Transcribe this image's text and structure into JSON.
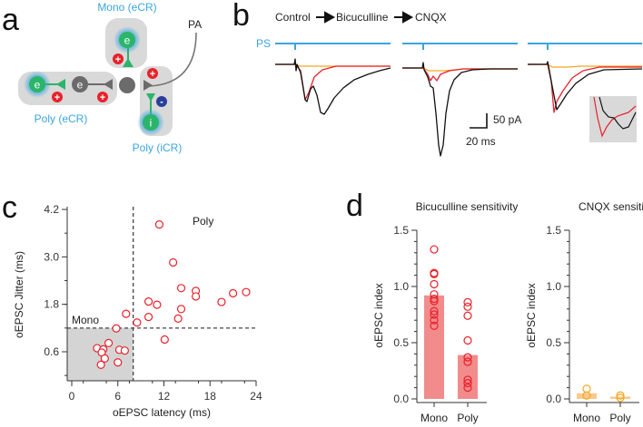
{
  "panels": {
    "a": {
      "letter": "a",
      "labels": {
        "mono": "Mono (eCR)",
        "poly_ecr": "Poly (eCR)",
        "poly_icr": "Poly (iCR)",
        "pa": "PA"
      },
      "cell_labels": {
        "excitatory": "e",
        "inhibitory": "i",
        "plus": "+",
        "minus": "-"
      }
    },
    "b": {
      "letter": "b",
      "legend": {
        "control": "Control",
        "bicuculline": "Bicuculline",
        "cnqx": "CNQX"
      },
      "ps_label": "PS",
      "scale_y": "50 pA",
      "scale_x": "20 ms"
    },
    "c": {
      "letter": "c"
    },
    "d": {
      "letter": "d"
    }
  },
  "colors": {
    "control": "#111111",
    "bicuculline": "#e8222a",
    "cnqx": "#f5a623",
    "ps": "#3aa5e0",
    "green": "#2bb56a",
    "bar_red": "#f28b8b",
    "bar_orange": "#f8c98a"
  },
  "chart_data": [
    {
      "type": "scatter",
      "title": "",
      "xlabel": "oEPSC latency (ms)",
      "ylabel": "oEPSC Jitter (ms)",
      "xlim": [
        -0.5,
        24
      ],
      "ylim": [
        -0.15,
        4.2
      ],
      "xticks": [
        "0",
        "6",
        "12",
        "18",
        "24"
      ],
      "yticks": [
        "0.6",
        "1.8",
        "3.0",
        "4.2"
      ],
      "thresholds": {
        "latency": 8,
        "jitter": 1.2
      },
      "region_labels": {
        "mono": "Mono",
        "poly": "Poly"
      },
      "points": [
        [
          11.4,
          3.82
        ],
        [
          13.2,
          2.86
        ],
        [
          14.25,
          2.21
        ],
        [
          16.15,
          2.14
        ],
        [
          16.15,
          2.0
        ],
        [
          22.7,
          2.11
        ],
        [
          21.0,
          2.08
        ],
        [
          19.5,
          1.86
        ],
        [
          10.0,
          1.87
        ],
        [
          11.1,
          1.79
        ],
        [
          14.25,
          1.68
        ],
        [
          7.07,
          1.56
        ],
        [
          10.0,
          1.48
        ],
        [
          13.85,
          1.44
        ],
        [
          8.5,
          1.34
        ],
        [
          5.8,
          1.19
        ],
        [
          12.1,
          0.91
        ],
        [
          4.8,
          0.82
        ],
        [
          3.3,
          0.69
        ],
        [
          4.1,
          0.66
        ],
        [
          3.9,
          0.58
        ],
        [
          6.2,
          0.65
        ],
        [
          6.9,
          0.63
        ],
        [
          4.3,
          0.43
        ],
        [
          6.0,
          0.33
        ],
        [
          3.8,
          0.27
        ]
      ]
    },
    {
      "type": "bar",
      "title": "Bicuculline sensitivity",
      "ylabel": "oEPSC index",
      "ylim": [
        0,
        1.5
      ],
      "yticks": [
        "0.0",
        "0.5",
        "1.0",
        "1.5"
      ],
      "categories": [
        "Mono",
        "Poly"
      ],
      "values": [
        0.92,
        0.39
      ],
      "points": [
        [
          1.33,
          1.12,
          1.11,
          1.02,
          0.93,
          0.89,
          0.87,
          0.78,
          0.75,
          0.7,
          0.65
        ],
        [
          0.86,
          0.82,
          0.74,
          0.52,
          0.37,
          0.33,
          0.17,
          0.14,
          0.1
        ]
      ]
    },
    {
      "type": "bar",
      "title": "CNQX sensitivity",
      "ylabel": "oEPSC index",
      "ylim": [
        0,
        1.5
      ],
      "yticks": [
        "0.0",
        "0.5",
        "1.0",
        "1.5"
      ],
      "categories": [
        "Mono",
        "Poly"
      ],
      "values": [
        0.05,
        0.02
      ],
      "points": [
        [
          0.09,
          0.03
        ],
        [
          0.03,
          0.01
        ]
      ]
    }
  ]
}
